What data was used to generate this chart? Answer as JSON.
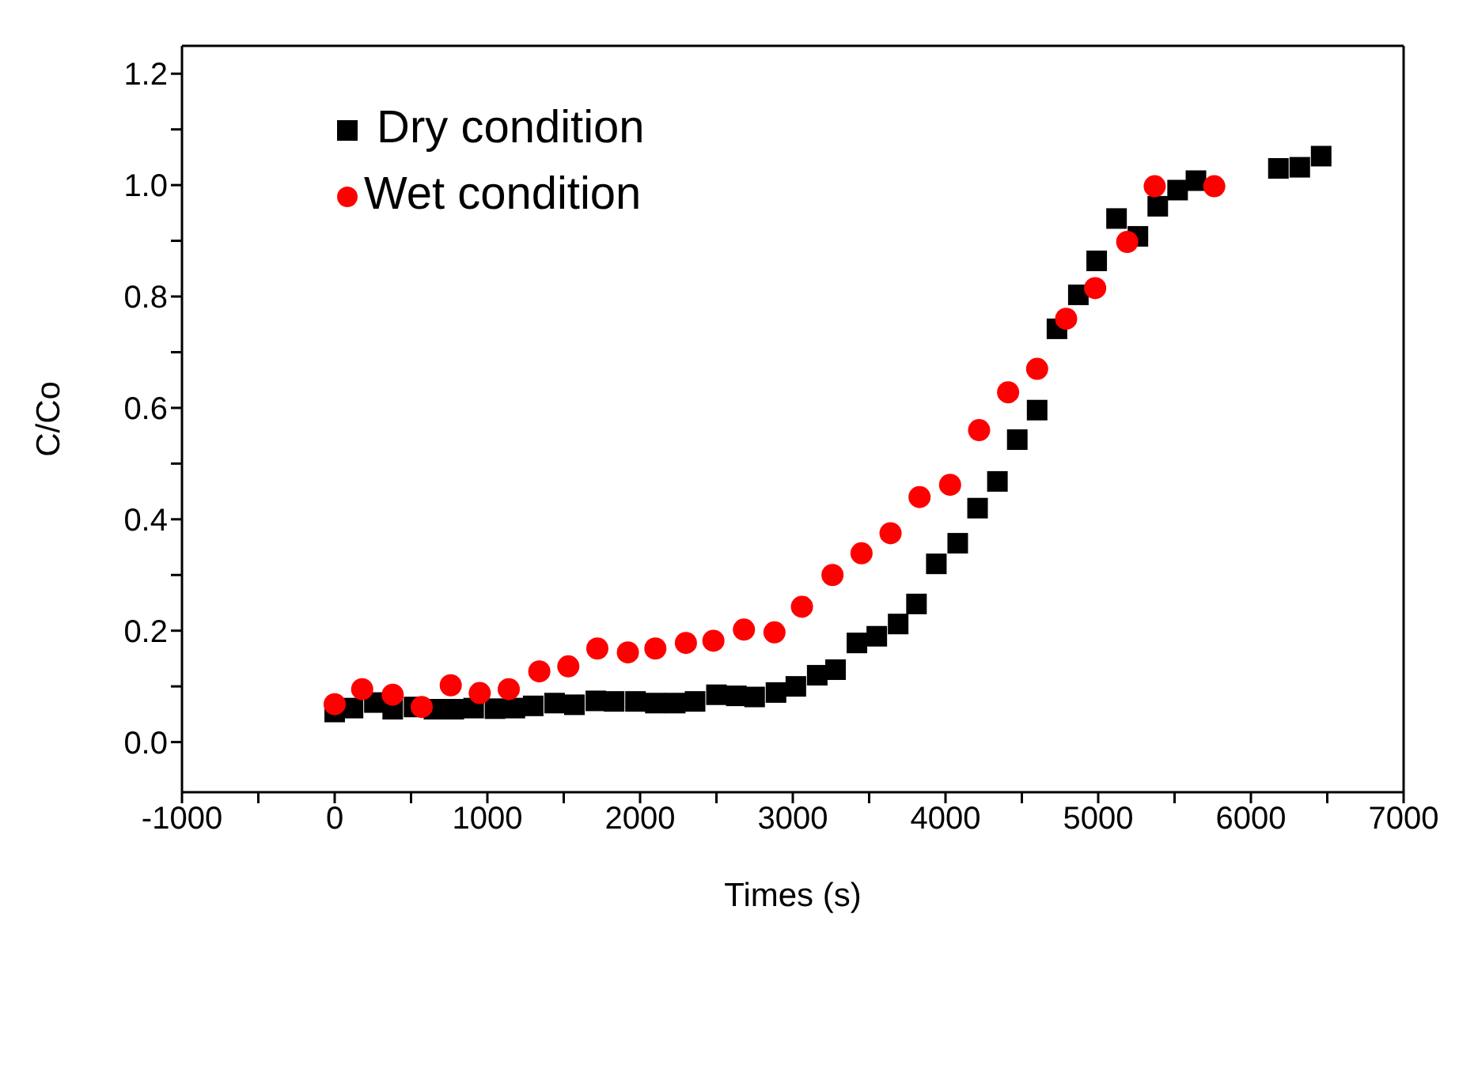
{
  "chart_data": {
    "type": "scatter",
    "xlabel": "Times (s)",
    "ylabel": "C/Co",
    "xlim": [
      -1000,
      7000
    ],
    "ylim": [
      -0.09,
      1.25
    ],
    "xticks": [
      -1000,
      {
        "value": -500,
        "label": null
      },
      0,
      {
        "value": 500,
        "label": null
      },
      1000,
      {
        "value": 1500,
        "label": null
      },
      2000,
      {
        "value": 2500,
        "label": null
      },
      3000,
      {
        "value": 3500,
        "label": null
      },
      4000,
      {
        "value": 4500,
        "label": null
      },
      5000,
      {
        "value": 5500,
        "label": null
      },
      6000,
      {
        "value": 6500,
        "label": null
      },
      7000
    ],
    "yticks": [
      {
        "value": 0,
        "label": "0.0"
      },
      {
        "value": 0.1,
        "label": null
      },
      0.2,
      {
        "value": 0.3,
        "label": null
      },
      0.4,
      {
        "value": 0.5,
        "label": null
      },
      0.6,
      {
        "value": 0.7,
        "label": null
      },
      0.8,
      {
        "value": 0.9,
        "label": null
      },
      {
        "value": 1,
        "label": "1.0"
      },
      {
        "value": 1.1,
        "label": null
      },
      1.2
    ],
    "grid": false,
    "legend": "top left",
    "series": [
      {
        "name": " Dry condition",
        "color": "#000000",
        "marker": "square",
        "x": [
          0,
          120,
          260,
          380,
          520,
          650,
          780,
          910,
          1050,
          1180,
          1300,
          1440,
          1570,
          1710,
          1830,
          1970,
          2100,
          2230,
          2360,
          2500,
          2630,
          2750,
          2890,
          3020,
          3160,
          3280,
          3420,
          3550,
          3690,
          3810,
          3940,
          4080,
          4210,
          4340,
          4470,
          4600,
          4730,
          4870,
          4990,
          5120,
          5260,
          5390,
          5520,
          5640,
          6180,
          6320,
          6460
        ],
        "values": [
          0.054,
          0.061,
          0.071,
          0.059,
          0.063,
          0.059,
          0.059,
          0.061,
          0.06,
          0.061,
          0.065,
          0.07,
          0.067,
          0.074,
          0.073,
          0.073,
          0.07,
          0.07,
          0.073,
          0.085,
          0.083,
          0.081,
          0.089,
          0.1,
          0.12,
          0.13,
          0.178,
          0.19,
          0.212,
          0.248,
          0.32,
          0.357,
          0.42,
          0.468,
          0.543,
          0.596,
          0.742,
          0.803,
          0.864,
          0.94,
          0.908,
          0.962,
          0.991,
          1.008,
          1.03,
          1.032,
          1.052
        ]
      },
      {
        "name": "Wet condition",
        "color": "#ff0000",
        "marker": "circle",
        "x": [
          0,
          180,
          380,
          570,
          760,
          950,
          1140,
          1340,
          1530,
          1720,
          1920,
          2100,
          2300,
          2480,
          2680,
          2880,
          3060,
          3260,
          3450,
          3640,
          3830,
          4030,
          4220,
          4410,
          4600,
          4790,
          4980,
          5190,
          5370,
          5760
        ],
        "values": [
          0.068,
          0.095,
          0.085,
          0.063,
          0.102,
          0.088,
          0.095,
          0.127,
          0.136,
          0.168,
          0.161,
          0.168,
          0.178,
          0.182,
          0.202,
          0.197,
          0.243,
          0.3,
          0.339,
          0.375,
          0.44,
          0.462,
          0.56,
          0.628,
          0.67,
          0.76,
          0.815,
          0.898,
          0.998,
          0.998
        ]
      }
    ]
  }
}
